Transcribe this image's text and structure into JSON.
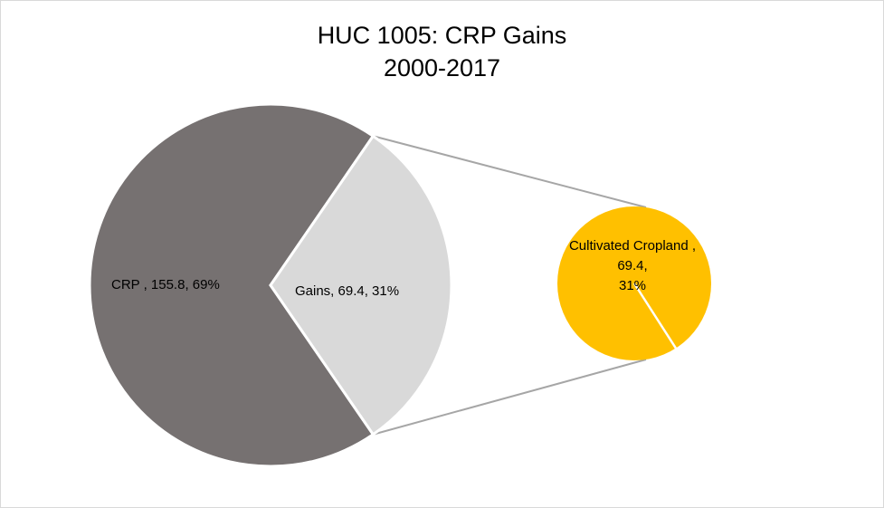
{
  "chart_data": {
    "type": "pie",
    "subtype": "pie-of-pie",
    "title": [
      "HUC 1005: CRP Gains",
      "2000-2017"
    ],
    "main_pie": {
      "slices": [
        {
          "name": "CRP",
          "value": 155.8,
          "percent": "69%",
          "label": "CRP , 155.8, 69%",
          "color": "#767171"
        },
        {
          "name": "Gains",
          "value": 69.4,
          "percent": "31%",
          "label": "Gains, 69.4, 31%",
          "color": "#d9d9d9"
        }
      ]
    },
    "secondary_pie": {
      "slices": [
        {
          "name": "Cultivated Cropland",
          "value": 69.4,
          "percent": "31%",
          "label_lines": [
            "Cultivated Cropland ,",
            "69.4,",
            "31%"
          ],
          "color": "#ffc000"
        }
      ]
    },
    "connector_color": "#a6a6a6"
  }
}
